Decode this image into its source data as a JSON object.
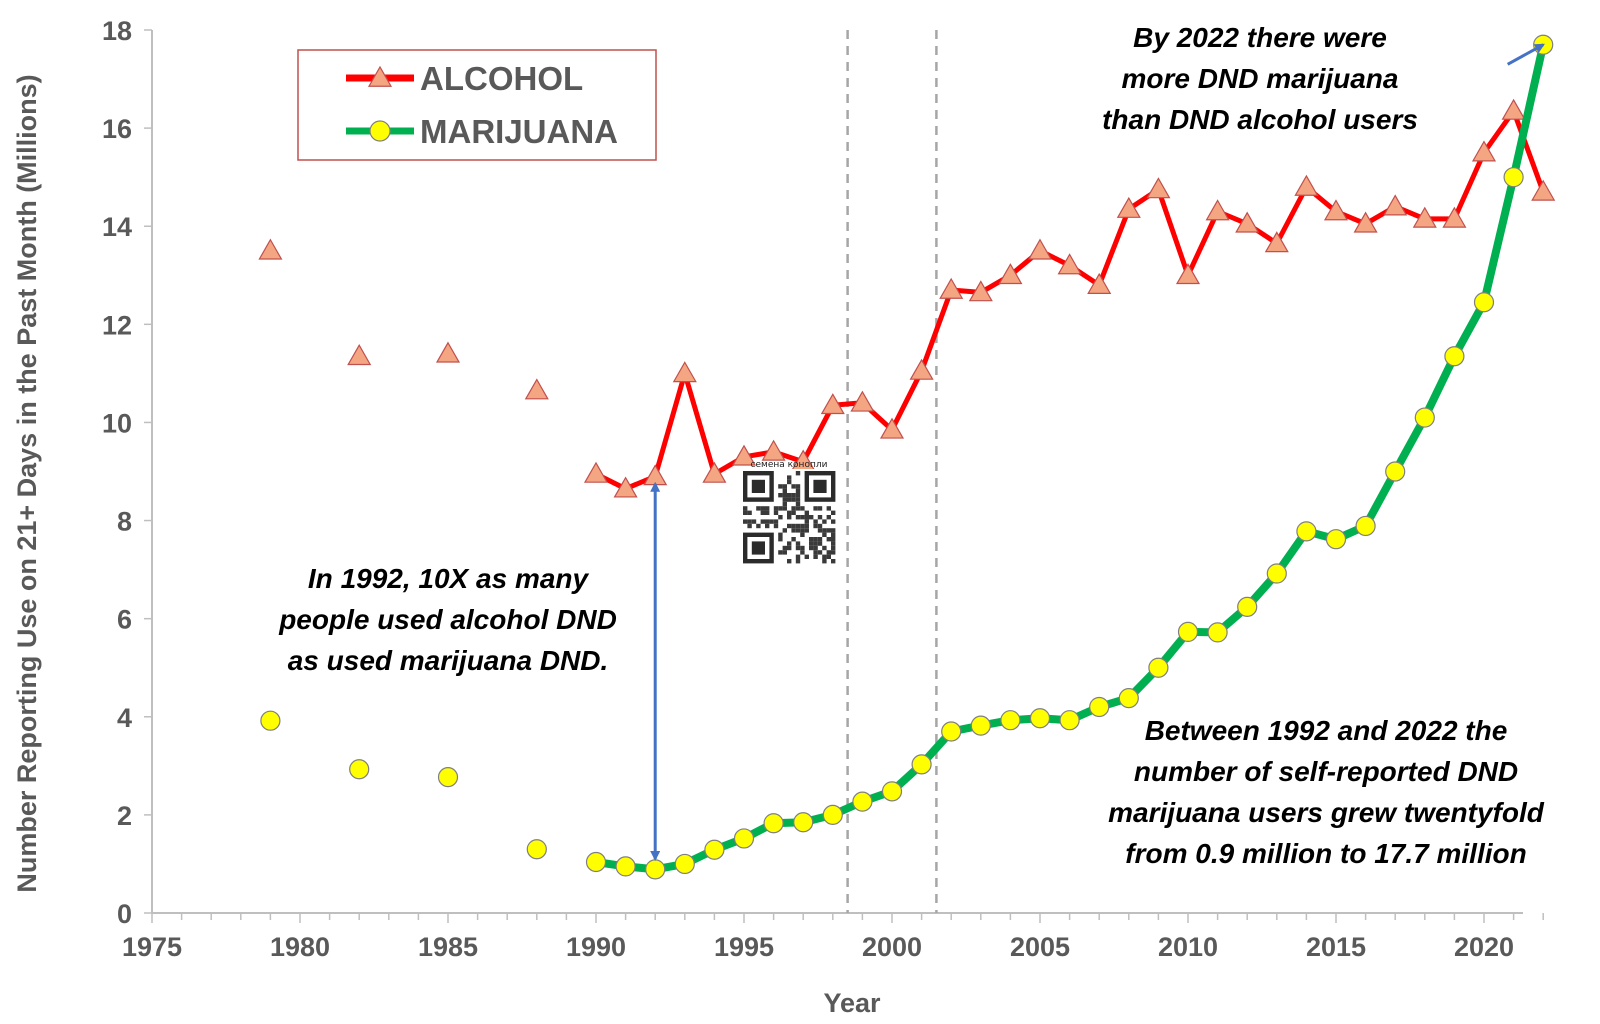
{
  "chart_data": {
    "type": "line",
    "xlabel": "Year",
    "ylabel": "Number Reporting Use on 21+ Days in the Past Month (Millions)",
    "xlim": [
      1975,
      2022
    ],
    "ylim": [
      0,
      18
    ],
    "x_ticks": [
      1975,
      1980,
      1985,
      1990,
      1995,
      2000,
      2005,
      2010,
      2015,
      2020
    ],
    "y_ticks": [
      0,
      2,
      4,
      6,
      8,
      10,
      12,
      14,
      16,
      18
    ],
    "grid": false,
    "legend_position": "top-left",
    "reference_lines_x": [
      1998.5,
      2001.5
    ],
    "series": [
      {
        "name": "ALCOHOL",
        "color": "#ff0000",
        "marker": "triangle",
        "marker_fill": "#f4a582",
        "connected_from": 1990,
        "points": [
          [
            1979,
            13.5
          ],
          [
            1982,
            11.35
          ],
          [
            1985,
            11.4
          ],
          [
            1988,
            10.65
          ],
          [
            1990,
            8.95
          ],
          [
            1991,
            8.65
          ],
          [
            1992,
            8.9
          ],
          [
            1993,
            11.0
          ],
          [
            1994,
            8.95
          ],
          [
            1995,
            9.3
          ],
          [
            1996,
            9.4
          ],
          [
            1997,
            9.2
          ],
          [
            1998,
            10.35
          ],
          [
            1999,
            10.4
          ],
          [
            2000,
            9.85
          ],
          [
            2001,
            11.05
          ],
          [
            2002,
            12.7
          ],
          [
            2003,
            12.65
          ],
          [
            2004,
            13.0
          ],
          [
            2005,
            13.5
          ],
          [
            2006,
            13.2
          ],
          [
            2007,
            12.8
          ],
          [
            2008,
            14.35
          ],
          [
            2009,
            14.75
          ],
          [
            2010,
            13.0
          ],
          [
            2011,
            14.3
          ],
          [
            2012,
            14.05
          ],
          [
            2013,
            13.65
          ],
          [
            2014,
            14.8
          ],
          [
            2015,
            14.3
          ],
          [
            2016,
            14.05
          ],
          [
            2017,
            14.4
          ],
          [
            2018,
            14.15
          ],
          [
            2019,
            14.15
          ],
          [
            2020,
            15.5
          ],
          [
            2021,
            16.35
          ],
          [
            2022,
            14.7
          ]
        ]
      },
      {
        "name": "MARIJUANA",
        "color": "#00b050",
        "marker": "circle",
        "marker_fill": "#ffff00",
        "connected_from": 1990,
        "points": [
          [
            1979,
            3.92
          ],
          [
            1982,
            2.93
          ],
          [
            1985,
            2.77
          ],
          [
            1988,
            1.3
          ],
          [
            1990,
            1.04
          ],
          [
            1991,
            0.95
          ],
          [
            1992,
            0.89
          ],
          [
            1993,
            1.0
          ],
          [
            1994,
            1.29
          ],
          [
            1995,
            1.52
          ],
          [
            1996,
            1.83
          ],
          [
            1997,
            1.85
          ],
          [
            1998,
            2.0
          ],
          [
            1999,
            2.27
          ],
          [
            2000,
            2.48
          ],
          [
            2001,
            3.03
          ],
          [
            2002,
            3.7
          ],
          [
            2003,
            3.82
          ],
          [
            2004,
            3.93
          ],
          [
            2005,
            3.97
          ],
          [
            2006,
            3.93
          ],
          [
            2007,
            4.2
          ],
          [
            2008,
            4.38
          ],
          [
            2009,
            5.0
          ],
          [
            2010,
            5.73
          ],
          [
            2011,
            5.72
          ],
          [
            2012,
            6.24
          ],
          [
            2013,
            6.92
          ],
          [
            2014,
            7.78
          ],
          [
            2015,
            7.62
          ],
          [
            2016,
            7.89
          ],
          [
            2017,
            9.0
          ],
          [
            2018,
            10.1
          ],
          [
            2019,
            11.35
          ],
          [
            2020,
            12.45
          ],
          [
            2021,
            15.0
          ],
          [
            2022,
            17.7
          ]
        ]
      }
    ],
    "annotations": [
      {
        "lines": [
          "In 1992, 10X as many",
          "people used alcohol DND",
          "as used marijuana DND."
        ]
      },
      {
        "lines": [
          "By 2022  there were",
          "more DND marijuana",
          "than DND alcohol users"
        ]
      },
      {
        "lines": [
          "Between 1992 and 2022 the",
          "number of self-reported DND",
          "marijuana users grew twentyfold",
          "from 0.9 million to 17.7 million"
        ]
      }
    ],
    "arrows": [
      {
        "from": [
          1992,
          8.75
        ],
        "to": [
          1992,
          1.1
        ],
        "double_headed": true,
        "color": "#4472c4"
      },
      {
        "from": [
          2020.8,
          17.3
        ],
        "to": [
          2022,
          17.7
        ],
        "double_headed": false,
        "color": "#4472c4"
      }
    ]
  },
  "overlay": {
    "qr_caption": "семена конопли",
    "qr_icon": "qr-code-icon"
  }
}
